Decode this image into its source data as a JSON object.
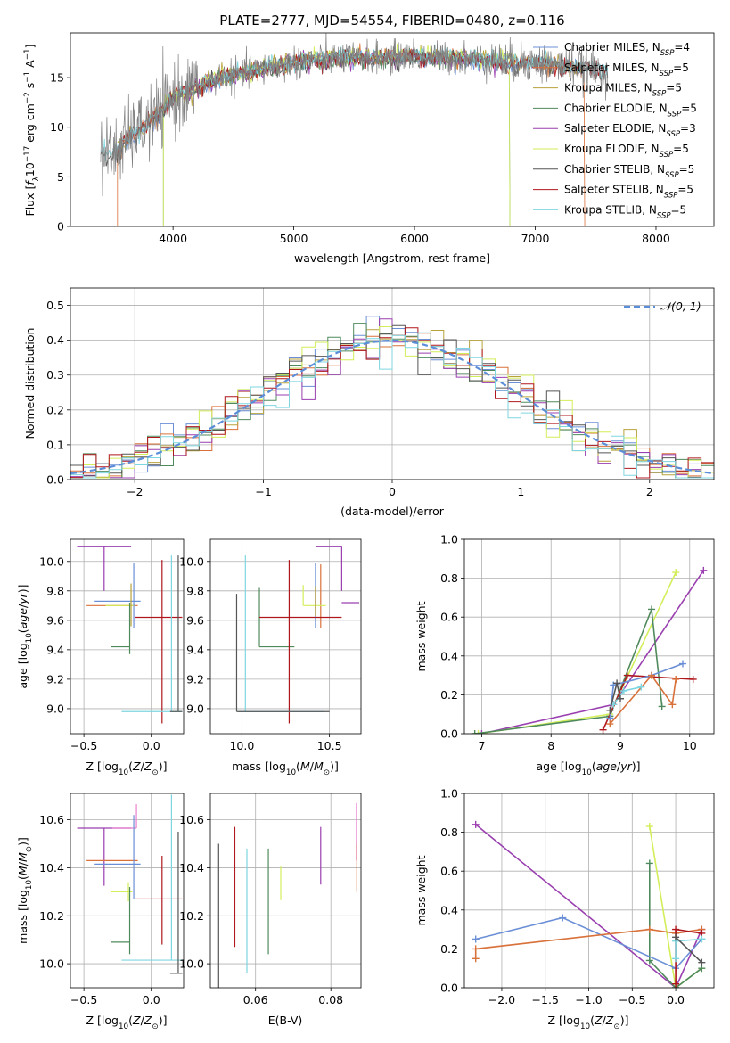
{
  "figure": {
    "title": "PLATE=2777, MJD=54554, FIBERID=0480, z=0.116",
    "colors": {
      "chabrier_miles": "#6b8fd6",
      "salpeter_miles": "#d9713a",
      "kroupa_miles": "#b8a23c",
      "chabrier_elodie": "#4f8a5c",
      "salpeter_elodie": "#9a3fb0",
      "kroupa_elodie": "#d2ee5a",
      "chabrier_stelib": "#555555",
      "salpeter_stelib": "#b0171d",
      "kroupa_stelib": "#7ed6e0",
      "data": "#808080",
      "gaussian": "#5b8ed8",
      "pink": "#e87fd0"
    }
  },
  "chart_data": [
    {
      "id": "spectrum",
      "type": "line",
      "xlabel": "wavelength [Angstrom, rest frame]",
      "ylabel": "Flux [f_λ10^-17 erg cm^-2 s^-1 A^-1]",
      "xlim": [
        3150,
        8480
      ],
      "ylim": [
        0,
        19.5
      ],
      "xticks": [
        4000,
        5000,
        6000,
        7000,
        8000
      ],
      "yticks": [
        0,
        5,
        10,
        15
      ],
      "grid": false,
      "legend_position": "right",
      "continuum": {
        "x": [
          3400,
          3500,
          3600,
          3700,
          3800,
          3900,
          4000,
          4100,
          4200,
          4300,
          4400,
          4500,
          4600,
          4700,
          4800,
          4900,
          5000,
          5200,
          5400,
          5600,
          5800,
          6000,
          6200,
          6400,
          6600,
          6800,
          7000,
          7200,
          7400,
          7600
        ],
        "y": [
          7.5,
          7.2,
          8.5,
          9.5,
          10.5,
          11.5,
          13.0,
          13.5,
          14.0,
          14.5,
          15.0,
          15.2,
          15.5,
          15.8,
          16.0,
          16.3,
          16.5,
          16.8,
          17.0,
          17.0,
          17.0,
          17.2,
          17.0,
          17.0,
          16.8,
          16.5,
          16.5,
          16.2,
          16.0,
          15.6
        ]
      },
      "legend": [
        {
          "label": "Chabrier MILES, N",
          "sub": "SSP",
          "value": "=4",
          "color_key": "chabrier_miles"
        },
        {
          "label": "Salpeter MILES, N",
          "sub": "SSP",
          "value": "=5",
          "color_key": "salpeter_miles"
        },
        {
          "label": "Kroupa MILES, N",
          "sub": "SSP",
          "value": "=5",
          "color_key": "kroupa_miles"
        },
        {
          "label": "Chabrier ELODIE, N",
          "sub": "SSP",
          "value": "=5",
          "color_key": "chabrier_elodie"
        },
        {
          "label": "Salpeter ELODIE, N",
          "sub": "SSP",
          "value": "=3",
          "color_key": "salpeter_elodie"
        },
        {
          "label": "Kroupa ELODIE, N",
          "sub": "SSP",
          "value": "=5",
          "color_key": "kroupa_elodie"
        },
        {
          "label": "Chabrier STELIB, N",
          "sub": "SSP",
          "value": "=5",
          "color_key": "chabrier_stelib"
        },
        {
          "label": "Salpeter STELIB, N",
          "sub": "SSP",
          "value": "=5",
          "color_key": "salpeter_stelib"
        },
        {
          "label": "Kroupa STELIB, N",
          "sub": "SSP",
          "value": "=5",
          "color_key": "kroupa_stelib"
        }
      ]
    },
    {
      "id": "residuals",
      "type": "histogram",
      "xlabel": "(data-model)/error",
      "ylabel": "Normed distribution",
      "xlim": [
        -2.5,
        2.5
      ],
      "ylim": [
        0,
        0.55
      ],
      "xticks": [
        -2,
        -1,
        0,
        1,
        2
      ],
      "yticks": [
        0.0,
        0.1,
        0.2,
        0.3,
        0.4,
        0.5
      ],
      "grid": true,
      "legend_position": "top-right",
      "legend_label": "𝒩(0, 1)",
      "bin_width": 0.1
    },
    {
      "id": "age_vs_Z",
      "type": "errorbar",
      "xlabel": "Z [log10(Z/Z⊙)]",
      "ylabel": "age [log10(age/yr)]",
      "xlim": [
        -0.6,
        0.24
      ],
      "ylim": [
        8.83,
        10.15
      ],
      "xticks": [
        -0.5,
        0.0
      ],
      "yticks": [
        9.0,
        9.2,
        9.4,
        9.6,
        9.8,
        10.0
      ],
      "grid": true,
      "points": [
        {
          "color_key": "salpeter_elodie",
          "x": -0.35,
          "xerr": [
            0.2,
            0.2
          ],
          "y": 10.1,
          "yerr": [
            0.3,
            0.0
          ]
        },
        {
          "color_key": "chabrier_miles",
          "x": -0.25,
          "xerr": [
            0.17,
            0.17
          ],
          "y": 9.73,
          "yerr": [
            0.0,
            0.0
          ]
        },
        {
          "color_key": "salpeter_miles",
          "x": -0.28,
          "xerr": [
            0.2,
            0.18
          ],
          "y": 9.7,
          "yerr": [
            0.0,
            0.0
          ]
        },
        {
          "color_key": "kroupa_elodie",
          "x": -0.22,
          "xerr": [
            0.12,
            0.1
          ],
          "y": 9.7,
          "yerr": [
            0.0,
            0.0
          ]
        },
        {
          "color_key": "kroupa_miles",
          "x": -0.15,
          "xerr": [
            0.0,
            0.0
          ],
          "y": 9.7,
          "yerr": [
            0.14,
            0.15
          ]
        },
        {
          "color_key": "chabrier_miles",
          "x": -0.13,
          "xerr": [
            0.0,
            0.0
          ],
          "y": 9.73,
          "yerr": [
            0.18,
            0.26
          ]
        },
        {
          "color_key": "chabrier_elodie",
          "x": -0.16,
          "xerr": [
            0.14,
            0.0
          ],
          "y": 9.42,
          "yerr": [
            0.05,
            0.3
          ]
        },
        {
          "color_key": "salpeter_stelib",
          "x": 0.08,
          "xerr": [
            0.2,
            0.15
          ],
          "y": 9.62,
          "yerr": [
            0.72,
            0.39
          ]
        },
        {
          "color_key": "kroupa_stelib",
          "x": 0.15,
          "xerr": [
            0.37,
            0.08
          ],
          "y": 8.98,
          "yerr": [
            0.0,
            1.06
          ]
        },
        {
          "color_key": "chabrier_stelib",
          "x": 0.2,
          "xerr": [
            0.06,
            0.03
          ],
          "y": 8.98,
          "yerr": [
            0.0,
            1.06
          ]
        }
      ]
    },
    {
      "id": "age_vs_mass",
      "type": "errorbar",
      "xlabel": "mass [log10(M/M⊙)]",
      "ylabel": "",
      "xlim": [
        9.82,
        10.68
      ],
      "ylim": [
        8.83,
        10.15
      ],
      "xticks": [
        10.0,
        10.5
      ],
      "yticks": [
        9.0,
        9.2,
        9.4,
        9.6,
        9.8,
        10.0
      ],
      "grid": true,
      "points": [
        {
          "color_key": "salpeter_elodie",
          "x": 10.57,
          "xerr": [
            0.15,
            0.0
          ],
          "y": 10.1,
          "yerr": [
            0.3,
            0.0
          ]
        },
        {
          "color_key": "chabrier_miles",
          "x": 10.42,
          "xerr": [
            0.0,
            0.0
          ],
          "y": 9.73,
          "yerr": [
            0.18,
            0.26
          ]
        },
        {
          "color_key": "salpeter_miles",
          "x": 10.45,
          "xerr": [
            0.0,
            0.0
          ],
          "y": 9.7,
          "yerr": [
            0.15,
            0.28
          ]
        },
        {
          "color_key": "kroupa_elodie",
          "x": 10.35,
          "xerr": [
            0.0,
            0.13
          ],
          "y": 9.7,
          "yerr": [
            0.0,
            0.14
          ]
        },
        {
          "color_key": "kroupa_miles",
          "x": 10.42,
          "xerr": [
            0.0,
            0.0
          ],
          "y": 9.73,
          "yerr": [
            0.1,
            0.1
          ]
        },
        {
          "color_key": "salpeter_elodie",
          "x": 10.57,
          "xerr": [
            0.0,
            0.1
          ],
          "y": 9.72,
          "yerr": [
            0.0,
            0.0
          ]
        },
        {
          "color_key": "chabrier_elodie",
          "x": 10.1,
          "xerr": [
            0.0,
            0.2
          ],
          "y": 9.42,
          "yerr": [
            0.0,
            0.4
          ]
        },
        {
          "color_key": "salpeter_stelib",
          "x": 10.27,
          "xerr": [
            0.17,
            0.3
          ],
          "y": 9.62,
          "yerr": [
            0.72,
            0.39
          ]
        },
        {
          "color_key": "kroupa_stelib",
          "x": 10.02,
          "xerr": [
            0.04,
            0.45
          ],
          "y": 8.98,
          "yerr": [
            0.0,
            1.06
          ]
        },
        {
          "color_key": "chabrier_stelib",
          "x": 9.97,
          "xerr": [
            0.0,
            0.53
          ],
          "y": 8.98,
          "yerr": [
            0.0,
            0.8
          ]
        }
      ]
    },
    {
      "id": "weight_vs_age",
      "type": "line",
      "xlabel": "age [log10(age/yr)]",
      "ylabel": "mass weight",
      "xlim": [
        6.75,
        10.35
      ],
      "ylim": [
        0,
        1.0
      ],
      "xticks": [
        7,
        8,
        9,
        10
      ],
      "yticks": [
        0.0,
        0.2,
        0.4,
        0.6,
        0.8,
        1.0
      ],
      "grid": true,
      "series": [
        {
          "color_key": "salpeter_elodie",
          "x": [
            7.0,
            8.9,
            10.2
          ],
          "y": [
            0.0,
            0.15,
            0.84
          ]
        },
        {
          "color_key": "kroupa_elodie",
          "x": [
            6.95,
            8.85,
            9.8
          ],
          "y": [
            0.0,
            0.1,
            0.83
          ]
        },
        {
          "color_key": "chabrier_elodie",
          "x": [
            6.9,
            8.85,
            9.45,
            9.6
          ],
          "y": [
            0.0,
            0.09,
            0.64,
            0.14
          ]
        },
        {
          "color_key": "salpeter_stelib",
          "x": [
            8.75,
            9.1,
            10.05
          ],
          "y": [
            0.02,
            0.3,
            0.28
          ]
        },
        {
          "color_key": "chabrier_miles",
          "x": [
            8.85,
            8.9,
            9.45,
            9.9
          ],
          "y": [
            0.08,
            0.25,
            0.3,
            0.36
          ]
        },
        {
          "color_key": "salpeter_miles",
          "x": [
            8.85,
            9.45,
            9.75,
            9.8
          ],
          "y": [
            0.05,
            0.3,
            0.15,
            0.28
          ]
        },
        {
          "color_key": "kroupa_stelib",
          "x": [
            8.9,
            9.05,
            9.3
          ],
          "y": [
            0.15,
            0.22,
            0.24
          ]
        },
        {
          "color_key": "chabrier_stelib",
          "x": [
            8.85,
            8.95,
            9.0
          ],
          "y": [
            0.12,
            0.26,
            0.18
          ]
        }
      ]
    },
    {
      "id": "mass_vs_Z",
      "type": "errorbar",
      "xlabel": "Z [log10(Z/Z⊙)]",
      "ylabel": "mass [log10(M/M⊙)]",
      "xlim": [
        -0.6,
        0.24
      ],
      "ylim": [
        9.9,
        10.71
      ],
      "xticks": [
        -0.5,
        0.0
      ],
      "yticks": [
        10.0,
        10.2,
        10.4,
        10.6
      ],
      "grid": true,
      "points": [
        {
          "color_key": "salpeter_elodie",
          "x": -0.35,
          "xerr": [
            0.2,
            0.2
          ],
          "y": 10.565,
          "yerr": [
            0.24,
            0.0
          ]
        },
        {
          "color_key": "pink",
          "x": -0.11,
          "xerr": [
            0.18,
            0.0
          ],
          "y": 10.565,
          "yerr": [
            0.0,
            0.1
          ]
        },
        {
          "color_key": "salpeter_miles",
          "x": -0.28,
          "xerr": [
            0.2,
            0.18
          ],
          "y": 10.43,
          "yerr": [
            0.0,
            0.0
          ]
        },
        {
          "color_key": "chabrier_miles",
          "x": -0.25,
          "xerr": [
            0.17,
            0.17
          ],
          "y": 10.415,
          "yerr": [
            0.0,
            0.0
          ]
        },
        {
          "color_key": "chabrier_miles",
          "x": -0.13,
          "xerr": [
            0.0,
            0.0
          ],
          "y": 10.42,
          "yerr": [
            0.15,
            0.2
          ]
        },
        {
          "color_key": "kroupa_elodie",
          "x": -0.22,
          "xerr": [
            0.08,
            0.08
          ],
          "y": 10.3,
          "yerr": [
            0.0,
            0.0
          ]
        },
        {
          "color_key": "kroupa_elodie",
          "x": -0.17,
          "xerr": [
            0.0,
            0.0
          ],
          "y": 10.3,
          "yerr": [
            0.04,
            0.04
          ]
        },
        {
          "color_key": "chabrier_elodie",
          "x": -0.16,
          "xerr": [
            0.14,
            0.0
          ],
          "y": 10.09,
          "yerr": [
            0.05,
            0.23
          ]
        },
        {
          "color_key": "salpeter_stelib",
          "x": 0.08,
          "xerr": [
            0.2,
            0.15
          ],
          "y": 10.27,
          "yerr": [
            0.19,
            0.18
          ]
        },
        {
          "color_key": "kroupa_stelib",
          "x": 0.15,
          "xerr": [
            0.37,
            0.08
          ],
          "y": 10.015,
          "yerr": [
            0.0,
            0.69
          ]
        },
        {
          "color_key": "chabrier_stelib",
          "x": 0.2,
          "xerr": [
            0.06,
            0.03
          ],
          "y": 9.96,
          "yerr": [
            0.0,
            0.59
          ]
        }
      ]
    },
    {
      "id": "mass_vs_ebv",
      "type": "errorbar",
      "xlabel": "E(B-V)",
      "ylabel": "",
      "xlim": [
        0.048,
        0.088
      ],
      "ylim": [
        9.9,
        10.71
      ],
      "xticks": [
        0.06,
        0.08
      ],
      "yticks": [
        10.0,
        10.2,
        10.4,
        10.6
      ],
      "grid": true,
      "points": [
        {
          "color_key": "chabrier_stelib",
          "x": 0.0502,
          "y": 10.2,
          "yerr": [
            0.3,
            0.3
          ]
        },
        {
          "color_key": "salpeter_stelib",
          "x": 0.0545,
          "y": 10.32,
          "yerr": [
            0.25,
            0.25
          ]
        },
        {
          "color_key": "kroupa_stelib",
          "x": 0.0577,
          "y": 10.22,
          "yerr": [
            0.26,
            0.26
          ]
        },
        {
          "color_key": "chabrier_elodie",
          "x": 0.0634,
          "y": 10.26,
          "yerr": [
            0.22,
            0.22
          ]
        },
        {
          "color_key": "kroupa_elodie",
          "x": 0.0667,
          "y": 10.335,
          "yerr": [
            0.07,
            0.07
          ]
        },
        {
          "color_key": "salpeter_elodie",
          "x": 0.0773,
          "y": 10.45,
          "yerr": [
            0.12,
            0.12
          ]
        },
        {
          "color_key": "pink",
          "x": 0.0868,
          "y": 10.55,
          "yerr": [
            0.12,
            0.12
          ]
        },
        {
          "color_key": "salpeter_miles",
          "x": 0.0869,
          "y": 10.4,
          "yerr": [
            0.1,
            0.1
          ]
        }
      ]
    },
    {
      "id": "weight_vs_Z",
      "type": "line",
      "xlabel": "Z [log10(Z/Z⊙)]",
      "ylabel": "mass weight",
      "xlim": [
        -2.43,
        0.44
      ],
      "ylim": [
        0,
        1.0
      ],
      "xticks": [
        -2.0,
        -1.5,
        -1.0,
        -0.5,
        0.0
      ],
      "yticks": [
        0.0,
        0.2,
        0.4,
        0.6,
        0.8,
        1.0
      ],
      "grid": true,
      "series": [
        {
          "color_key": "salpeter_elodie",
          "x": [
            -2.3,
            0.0,
            0.3
          ],
          "y": [
            0.84,
            0.0,
            0.3
          ]
        },
        {
          "color_key": "kroupa_elodie",
          "x": [
            -0.3,
            0.0,
            0.3
          ],
          "y": [
            0.83,
            0.0,
            0.1
          ]
        },
        {
          "color_key": "chabrier_elodie",
          "x": [
            -0.3,
            -0.3,
            0.0,
            0.3
          ],
          "y": [
            0.64,
            0.14,
            0.0,
            0.1
          ]
        },
        {
          "color_key": "chabrier_miles",
          "x": [
            -2.3,
            -1.3,
            0.0,
            0.3
          ],
          "y": [
            0.25,
            0.36,
            0.1,
            0.25
          ]
        },
        {
          "color_key": "salpeter_miles",
          "x": [
            -2.3,
            -2.3,
            -0.3,
            0.0,
            0.3
          ],
          "y": [
            0.15,
            0.2,
            0.3,
            0.28,
            0.3
          ]
        },
        {
          "color_key": "salpeter_stelib",
          "x": [
            0.0,
            0.0,
            0.3
          ],
          "y": [
            0.02,
            0.3,
            0.28
          ]
        },
        {
          "color_key": "kroupa_stelib",
          "x": [
            0.0,
            0.0,
            0.3
          ],
          "y": [
            0.15,
            0.24,
            0.25
          ]
        },
        {
          "color_key": "chabrier_stelib",
          "x": [
            0.0,
            0.3
          ],
          "y": [
            0.26,
            0.13
          ]
        }
      ]
    }
  ]
}
